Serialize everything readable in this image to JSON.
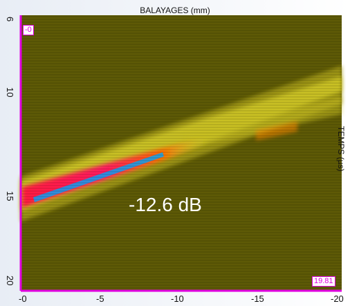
{
  "plot": {
    "title": "BALAYAGES (mm)",
    "y_axis_label": "TEMPS (µs)",
    "x_ticks": [
      "-0",
      "-5",
      "-10",
      "-15",
      "-20"
    ],
    "y_ticks": [
      "6",
      "10",
      "15",
      "20"
    ],
    "corner_top_left": "-0",
    "corner_bottom_right": "19.81",
    "amplitude_label": "-12.6 dB",
    "x_range": [
      0,
      -20
    ],
    "y_range": [
      6,
      20
    ]
  },
  "colors": {
    "background": "#5e5a06",
    "band_low": "#a9a21a",
    "band_mid": "#d8d12a",
    "band_high": "#ff8a00",
    "band_peak": "#ff1a40",
    "band_max": "#00a8ff",
    "axis": "#e000e0"
  }
}
